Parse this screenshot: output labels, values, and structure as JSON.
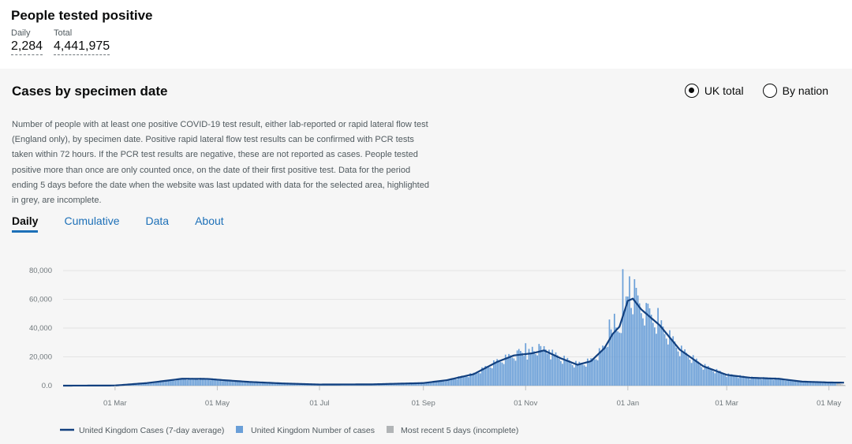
{
  "header": {
    "title": "People tested positive",
    "daily_label": "Daily",
    "daily_value": "2,284",
    "total_label": "Total",
    "total_value": "4,441,975"
  },
  "card": {
    "title": "Cases by specimen date",
    "radios": [
      {
        "label": "UK total",
        "selected": true
      },
      {
        "label": "By nation",
        "selected": false
      }
    ],
    "description": "Number of people with at least one positive COVID-19 test result, either lab-reported or rapid lateral flow test (England only), by specimen date. Positive rapid lateral flow test results can be confirmed with PCR tests taken within 72 hours. If the PCR test results are negative, these are not reported as cases. People tested positive more than once are only counted once, on the date of their first positive test. Data for the period ending 5 days before the date when the website was last updated with data for the selected area, highlighted in grey, are incomplete.",
    "tabs": [
      {
        "label": "Daily",
        "active": true
      },
      {
        "label": "Cumulative",
        "active": false
      },
      {
        "label": "Data",
        "active": false
      },
      {
        "label": "About",
        "active": false
      }
    ]
  },
  "colors": {
    "bar": "#6a9fd8",
    "line": "#12407f",
    "incomplete": "#b1b4b6",
    "grid": "#e3e3e3",
    "tab_link": "#1d70b8"
  },
  "chart_data": {
    "type": "bar",
    "x_range": [
      "2020-01-30",
      "2021-05-11"
    ],
    "ylim": [
      0,
      85000
    ],
    "yticks": [
      0,
      20000,
      40000,
      60000,
      80000
    ],
    "ytick_labels": [
      "0.0",
      "20,000",
      "40,000",
      "60,000",
      "80,000"
    ],
    "xticks": [
      {
        "date": "2020-03-01",
        "label": "01 Mar"
      },
      {
        "date": "2020-05-01",
        "label": "01 May"
      },
      {
        "date": "2020-07-01",
        "label": "01 Jul"
      },
      {
        "date": "2020-09-01",
        "label": "01 Sep"
      },
      {
        "date": "2020-11-01",
        "label": "01 Nov"
      },
      {
        "date": "2021-01-01",
        "label": "01 Jan"
      },
      {
        "date": "2021-03-01",
        "label": "01 Mar"
      },
      {
        "date": "2021-05-01",
        "label": "01 May"
      }
    ],
    "incomplete_from": "2021-05-06",
    "series": [
      {
        "name": "United Kingdom Cases (7-day average)",
        "kind": "line"
      },
      {
        "name": "United Kingdom Number of cases",
        "kind": "bar"
      },
      {
        "name": "Most recent 5 days (incomplete)",
        "kind": "bar"
      }
    ],
    "avg_points": [
      {
        "date": "2020-01-30",
        "value": 0
      },
      {
        "date": "2020-03-01",
        "value": 100
      },
      {
        "date": "2020-03-20",
        "value": 1800
      },
      {
        "date": "2020-04-01",
        "value": 3500
      },
      {
        "date": "2020-04-10",
        "value": 4800
      },
      {
        "date": "2020-04-25",
        "value": 4700
      },
      {
        "date": "2020-05-05",
        "value": 3800
      },
      {
        "date": "2020-05-20",
        "value": 2600
      },
      {
        "date": "2020-06-10",
        "value": 1500
      },
      {
        "date": "2020-07-01",
        "value": 800
      },
      {
        "date": "2020-08-01",
        "value": 900
      },
      {
        "date": "2020-09-01",
        "value": 1800
      },
      {
        "date": "2020-09-15",
        "value": 3800
      },
      {
        "date": "2020-10-01",
        "value": 8000
      },
      {
        "date": "2020-10-15",
        "value": 16500
      },
      {
        "date": "2020-10-25",
        "value": 21000
      },
      {
        "date": "2020-11-05",
        "value": 22500
      },
      {
        "date": "2020-11-12",
        "value": 24500
      },
      {
        "date": "2020-11-22",
        "value": 19000
      },
      {
        "date": "2020-12-02",
        "value": 14500
      },
      {
        "date": "2020-12-10",
        "value": 17000
      },
      {
        "date": "2020-12-18",
        "value": 26000
      },
      {
        "date": "2020-12-23",
        "value": 36000
      },
      {
        "date": "2020-12-27",
        "value": 41000
      },
      {
        "date": "2021-01-01",
        "value": 59000
      },
      {
        "date": "2021-01-04",
        "value": 60500
      },
      {
        "date": "2021-01-09",
        "value": 53000
      },
      {
        "date": "2021-01-20",
        "value": 42000
      },
      {
        "date": "2021-02-01",
        "value": 25000
      },
      {
        "date": "2021-02-15",
        "value": 13500
      },
      {
        "date": "2021-03-01",
        "value": 7500
      },
      {
        "date": "2021-03-15",
        "value": 5500
      },
      {
        "date": "2021-04-01",
        "value": 4800
      },
      {
        "date": "2021-04-15",
        "value": 2800
      },
      {
        "date": "2021-05-01",
        "value": 2200
      },
      {
        "date": "2021-05-09",
        "value": 2100
      }
    ],
    "spikes": [
      {
        "date": "2020-10-28",
        "value": 25500
      },
      {
        "date": "2020-11-01",
        "value": 29500
      },
      {
        "date": "2020-11-05",
        "value": 27000
      },
      {
        "date": "2020-11-09",
        "value": 29000
      },
      {
        "date": "2020-11-15",
        "value": 25000
      },
      {
        "date": "2020-12-21",
        "value": 46000
      },
      {
        "date": "2020-12-24",
        "value": 50000
      },
      {
        "date": "2020-12-29",
        "value": 81000
      },
      {
        "date": "2021-01-02",
        "value": 76000
      },
      {
        "date": "2021-01-05",
        "value": 74000
      },
      {
        "date": "2021-01-06",
        "value": 68000
      },
      {
        "date": "2021-01-13",
        "value": 57000
      },
      {
        "date": "2021-01-19",
        "value": 54000
      }
    ]
  }
}
